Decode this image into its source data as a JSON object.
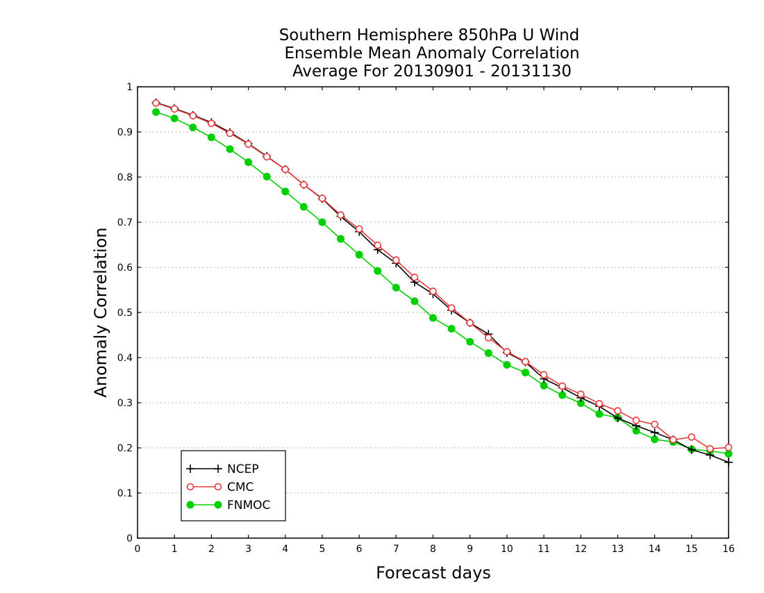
{
  "chart_data": {
    "type": "line",
    "title_lines": [
      "Southern Hemisphere 850hPa U Wind",
      "Ensemble Mean Anomaly Correlation",
      "Average For 20130901 - 20131130"
    ],
    "xlabel": "Forecast days",
    "ylabel": "Anomaly Correlation",
    "xlim": [
      0,
      16
    ],
    "ylim": [
      0,
      1
    ],
    "x_ticks": [
      "0",
      "1",
      "2",
      "3",
      "4",
      "5",
      "6",
      "7",
      "8",
      "9",
      "10",
      "11",
      "12",
      "13",
      "14",
      "15",
      "16"
    ],
    "y_ticks": [
      "0",
      "0.1",
      "0.2",
      "0.3",
      "0.4",
      "0.5",
      "0.6",
      "0.7",
      "0.8",
      "0.9",
      "1"
    ],
    "grid": "horizontal dotted",
    "legend_position": "bottom-left",
    "x": [
      0.5,
      1,
      1.5,
      2,
      2.5,
      3,
      3.5,
      4,
      4.5,
      5,
      5.5,
      6,
      6.5,
      7,
      7.5,
      8,
      8.5,
      9,
      9.5,
      10,
      10.5,
      11,
      11.5,
      12,
      12.5,
      13,
      13.5,
      14,
      14.5,
      15,
      15.5,
      16
    ],
    "series": [
      {
        "name": "NCEP",
        "color": "#000000",
        "marker": "plus",
        "values": [
          0.965,
          0.952,
          0.937,
          0.921,
          0.899,
          0.874,
          0.846,
          0.817,
          0.783,
          0.752,
          0.713,
          0.679,
          0.639,
          0.609,
          0.567,
          0.541,
          0.505,
          0.477,
          0.452,
          0.411,
          0.39,
          0.353,
          0.333,
          0.311,
          0.292,
          0.266,
          0.249,
          0.234,
          0.218,
          0.196,
          0.184,
          0.168
        ]
      },
      {
        "name": "CMC",
        "color": "#e8393b",
        "marker": "open-circle",
        "values": [
          0.964,
          0.951,
          0.936,
          0.919,
          0.897,
          0.873,
          0.845,
          0.817,
          0.783,
          0.753,
          0.716,
          0.685,
          0.649,
          0.616,
          0.578,
          0.547,
          0.51,
          0.477,
          0.444,
          0.413,
          0.391,
          0.362,
          0.337,
          0.319,
          0.298,
          0.282,
          0.261,
          0.252,
          0.218,
          0.224,
          0.198,
          0.201
        ]
      },
      {
        "name": "FNMOC",
        "color": "#00d000",
        "marker": "filled-circle",
        "values": [
          0.944,
          0.93,
          0.91,
          0.888,
          0.862,
          0.833,
          0.801,
          0.768,
          0.734,
          0.7,
          0.663,
          0.628,
          0.592,
          0.555,
          0.525,
          0.488,
          0.464,
          0.435,
          0.41,
          0.384,
          0.367,
          0.338,
          0.317,
          0.299,
          0.275,
          0.267,
          0.238,
          0.219,
          0.213,
          0.197,
          0.193,
          0.187
        ]
      }
    ]
  }
}
